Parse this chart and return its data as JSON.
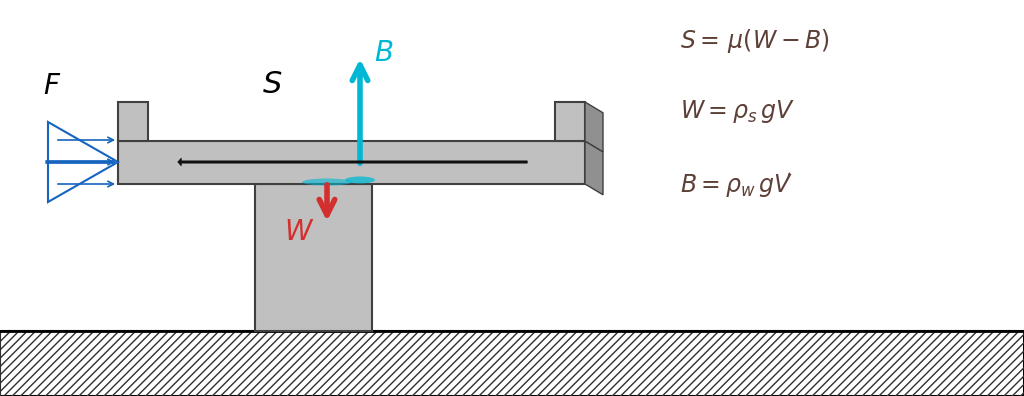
{
  "bg_color": "#ffffff",
  "girder_color": "#c0c0c0",
  "girder_dark": "#909090",
  "girder_edge": "#404040",
  "pier_color": "#c0c0c0",
  "ground_hatch_color": "#505050",
  "arrow_S_color": "#111111",
  "arrow_B_color": "#00b8d4",
  "arrow_W_color": "#d32f2f",
  "arrow_F_color": "#1565c0",
  "label_F": "$\\mathit{F}$",
  "label_S": "$\\mathit{S}$",
  "label_B": "$\\mathit{B}$",
  "label_W": "$\\mathit{W}$",
  "eq1": "$S = \\,\\mu(W - B)$",
  "eq2": "$W = \\rho_s\\,gV$",
  "eq3": "$B = \\rho_w\\,gV\\!'$",
  "eq_color": "#5d4037",
  "eq_fontsize": 17
}
